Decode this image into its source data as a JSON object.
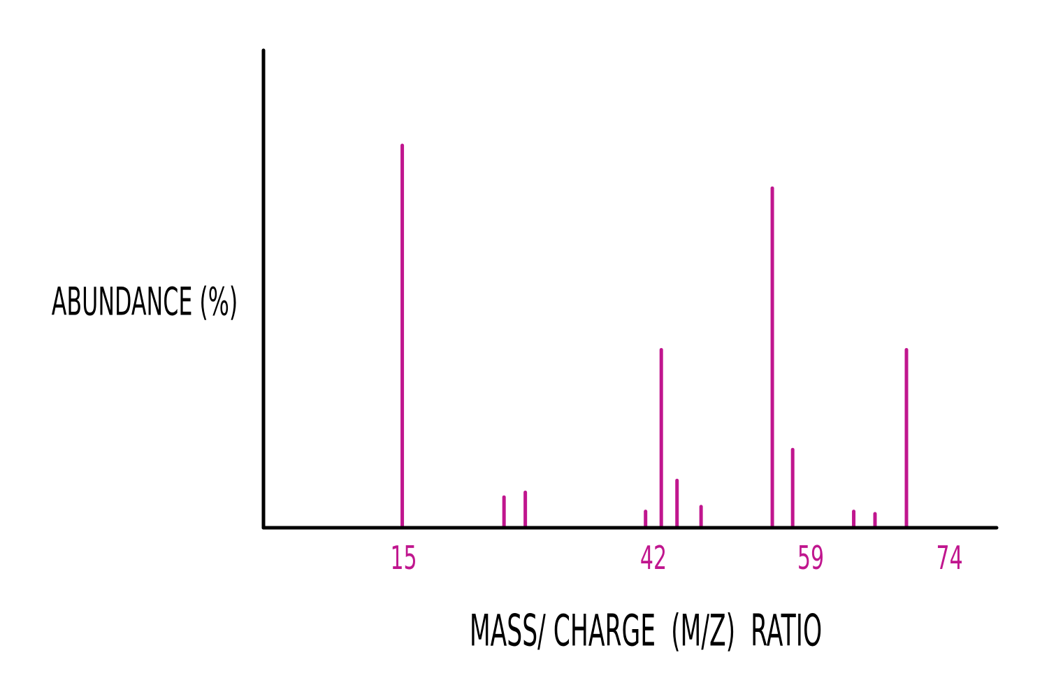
{
  "chart_data": {
    "type": "bar",
    "title": "",
    "xlabel": "MASS/ CHARGE  (M/Z)  RATIO",
    "ylabel": "ABUNDANCE (%)",
    "xlim": [
      0,
      80
    ],
    "ylim": [
      0,
      100
    ],
    "grid": false,
    "tick_labels": [
      "15",
      "42",
      "59",
      "74"
    ],
    "tick_values": [
      15,
      42,
      59,
      74
    ],
    "bar_color": "#c0168e",
    "axis_color": "#000000",
    "peaks": [
      {
        "x": 15,
        "y": 80
      },
      {
        "x": 26,
        "y": 6
      },
      {
        "x": 28.3,
        "y": 7
      },
      {
        "x": 41.3,
        "y": 3
      },
      {
        "x": 43,
        "y": 37
      },
      {
        "x": 44.7,
        "y": 9.5
      },
      {
        "x": 47.3,
        "y": 4
      },
      {
        "x": 55,
        "y": 71
      },
      {
        "x": 57.2,
        "y": 16
      },
      {
        "x": 63.8,
        "y": 3
      },
      {
        "x": 66.1,
        "y": 2.5
      },
      {
        "x": 69.5,
        "y": 37
      }
    ]
  }
}
